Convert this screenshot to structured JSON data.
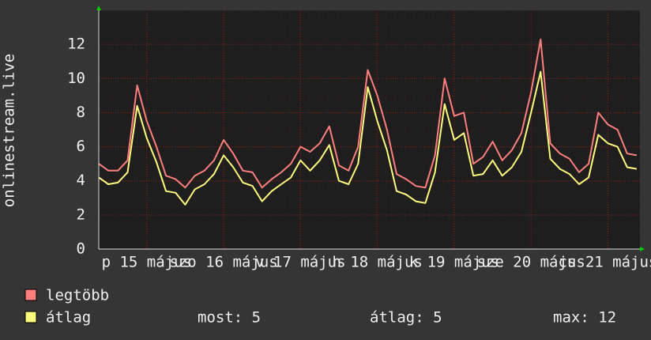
{
  "chart_data": {
    "type": "line",
    "y_label": "onlinestream.live",
    "x": [
      -3,
      0,
      3,
      6,
      9,
      12,
      15,
      18,
      21,
      24,
      27,
      30,
      33,
      36,
      39,
      42,
      45,
      48,
      51,
      54,
      57,
      60,
      63,
      66,
      69,
      72,
      75,
      78,
      81,
      84,
      87,
      90,
      93,
      96,
      99,
      102,
      105,
      108,
      111,
      114,
      117,
      120,
      123,
      126,
      129,
      132,
      135,
      138,
      141,
      144,
      147,
      150,
      153,
      156,
      159,
      162,
      165
    ],
    "xlim": [
      -3,
      166
    ],
    "xticks": [
      {
        "value": 12,
        "label": "p 15 május"
      },
      {
        "value": 36,
        "label": "szo 16 május"
      },
      {
        "value": 60,
        "label": "v 17 május"
      },
      {
        "value": 84,
        "label": "h 18 május"
      },
      {
        "value": 108,
        "label": "k 19 május"
      },
      {
        "value": 132,
        "label": "sze 20 május"
      },
      {
        "value": 156,
        "label": "cs 21 május"
      }
    ],
    "ylim": [
      0,
      14
    ],
    "yticks": [
      0,
      2,
      4,
      6,
      8,
      10,
      12
    ],
    "grid": true,
    "series": [
      {
        "name": "legtöbb",
        "color": "#ff7f7f",
        "values": [
          5.0,
          4.6,
          4.6,
          5.2,
          9.6,
          7.5,
          6.0,
          4.3,
          4.1,
          3.6,
          4.3,
          4.6,
          5.2,
          6.4,
          5.6,
          4.6,
          4.5,
          3.6,
          4.1,
          4.5,
          5.0,
          6.0,
          5.7,
          6.2,
          7.2,
          4.9,
          4.6,
          6.0,
          10.5,
          9.0,
          7.0,
          4.4,
          4.1,
          3.7,
          3.6,
          5.5,
          10.0,
          7.8,
          8.0,
          5.0,
          5.4,
          6.3,
          5.2,
          5.8,
          6.8,
          9.2,
          12.3,
          6.2,
          5.6,
          5.3,
          4.5,
          5.0,
          8.0,
          7.3,
          7.0,
          5.6,
          5.5
        ]
      },
      {
        "name": "átlag",
        "color": "#ffff7f",
        "values": [
          4.2,
          3.8,
          3.9,
          4.5,
          8.4,
          6.5,
          5.1,
          3.4,
          3.3,
          2.6,
          3.5,
          3.8,
          4.4,
          5.5,
          4.8,
          3.9,
          3.7,
          2.8,
          3.4,
          3.8,
          4.2,
          5.2,
          4.6,
          5.2,
          6.1,
          4.0,
          3.8,
          5.0,
          9.5,
          7.5,
          5.8,
          3.4,
          3.2,
          2.8,
          2.7,
          4.5,
          8.5,
          6.4,
          6.8,
          4.3,
          4.4,
          5.2,
          4.3,
          4.8,
          5.7,
          8.0,
          10.4,
          5.3,
          4.7,
          4.4,
          3.8,
          4.2,
          6.7,
          6.2,
          6.0,
          4.8,
          4.7
        ]
      }
    ],
    "stats": [
      "most: 5",
      "átlag: 5",
      "max: 12"
    ]
  }
}
